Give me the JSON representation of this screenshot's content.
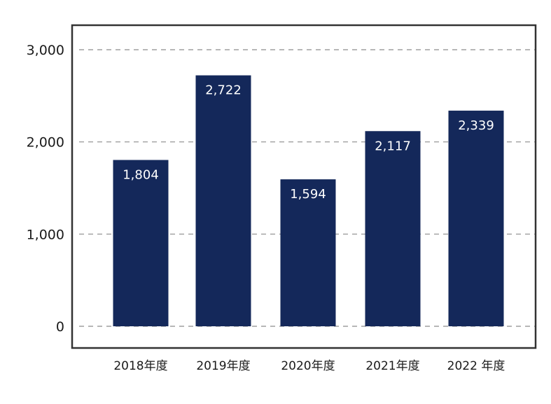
{
  "chart_data": {
    "type": "bar",
    "categories": [
      "2018年度",
      "2019年度",
      "2020年度",
      "2021年度",
      "2022 年度"
    ],
    "values": [
      1804,
      2722,
      1594,
      2117,
      2339
    ],
    "value_labels": [
      "1,804",
      "2,722",
      "1,594",
      "2,117",
      "2,339"
    ],
    "yticks": [
      0,
      1000,
      2000,
      3000
    ],
    "ytick_labels": [
      "0",
      "1,000",
      "2,000",
      "3,000"
    ],
    "ylim": [
      0,
      3000
    ],
    "grid": true,
    "grid_style": "dashed",
    "title": "",
    "xlabel": "",
    "ylabel": "",
    "colors": {
      "bar": "#14285a",
      "frame": "#333333",
      "grid": "#8c8c8c",
      "data_label": "#ffffff"
    }
  }
}
